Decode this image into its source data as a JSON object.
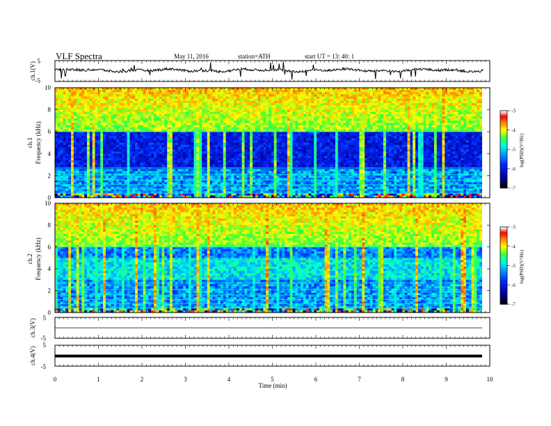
{
  "header": {
    "title": "VLF  Spectra",
    "date": "May 11, 2016",
    "station": "station=ATH",
    "start": "start  UT  =    13: 40: 1"
  },
  "chart_data": [
    {
      "type": "line",
      "panel": "ch1-waveform",
      "ylabel": "ch.1(V)",
      "ylim": [
        -5,
        5
      ],
      "yticks": [
        "5",
        "-5"
      ],
      "xlim": [
        0,
        10
      ],
      "color": "#000000",
      "description_values": "noisy waveform centered near 0 V"
    },
    {
      "type": "heatmap",
      "panel": "ch1-spectrogram",
      "ylabel": "ch.1",
      "ylabel2": "Frequency  (kHz)",
      "ylim": [
        0,
        10
      ],
      "yticks": [
        "0",
        "2",
        "4",
        "6",
        "8",
        "10"
      ],
      "xlim": [
        0,
        9.85
      ],
      "colorbar": {
        "label": "log(PSD)(V²/Hz)",
        "ticks": [
          "-3",
          "-4",
          "-5",
          "-6",
          "-7"
        ],
        "range": [
          -7,
          -3
        ]
      }
    },
    {
      "type": "heatmap",
      "panel": "ch2-spectrogram",
      "ylabel": "ch.2",
      "ylabel2": "Frequency  (kHz)",
      "ylim": [
        0,
        10
      ],
      "yticks": [
        "0",
        "2",
        "4",
        "6",
        "8",
        "10"
      ],
      "xlim": [
        0,
        9.85
      ],
      "colorbar": {
        "label": "log(PSD)(V²/Hz)",
        "ticks": [
          "-3",
          "-4",
          "-5",
          "-6",
          "-7"
        ],
        "range": [
          -7,
          -3
        ]
      }
    },
    {
      "type": "line",
      "panel": "ch3-waveform",
      "ylabel": "ch.3(V)",
      "ylim": [
        -5,
        5
      ],
      "yticks": [
        "5",
        "-5"
      ],
      "xlim": [
        0,
        10
      ]
    },
    {
      "type": "line",
      "panel": "ch4-waveform",
      "ylabel": "ch.4(V)",
      "ylim": [
        -5,
        5
      ],
      "yticks": [
        "5",
        "-5"
      ],
      "xlim": [
        0,
        10
      ]
    }
  ],
  "xaxis": {
    "label": "Time  (min)",
    "ticks": [
      "0",
      "1",
      "2",
      "3",
      "4",
      "5",
      "6",
      "7",
      "8",
      "9",
      "10"
    ]
  },
  "colormap": [
    "#000000",
    "#0000aa",
    "#0030ff",
    "#00a0ff",
    "#00ffe0",
    "#40ff40",
    "#ffff00",
    "#ff8000",
    "#ff0000",
    "#ffffff"
  ]
}
